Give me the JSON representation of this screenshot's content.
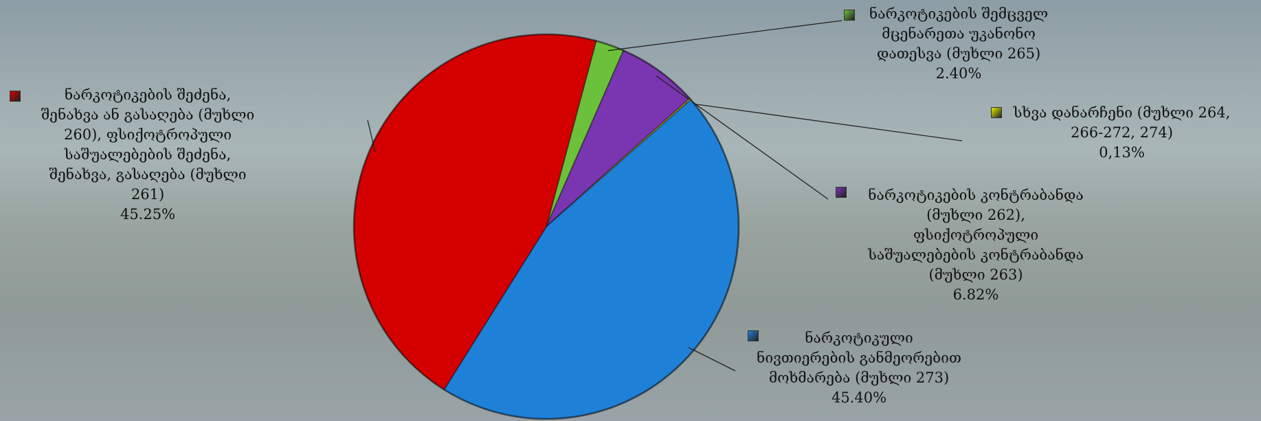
{
  "chart_data": {
    "type": "pie",
    "categories": [
      "ნარკოტიკების შემცველ\nმცენარეთა უკანონო\nდათესვა (მუხლი 265)",
      "ნარკოტიკების კონტრაბანდა\n(მუხლი 262),\nფსიქოტროპული\nსაშუალებების კონტრაბანდა\n(მუხლი 263)",
      "სხვა დანარჩენი (მუხლი 264,\n266-272, 274)",
      "ნარკოტიკული\nნივთიერების განმეორებით\nმოხმარება (მუხლი 273)",
      "ნარკოტიკების შეძენა,\nშენახვა ან გასაღება (მუხლი\n260), ფსიქოტროპული\nსაშუალებების შეძენა,\nშენახვა, გასაღება (მუხლი\n261)"
    ],
    "values": [
      2.4,
      6.82,
      0.13,
      45.4,
      45.25
    ],
    "value_labels": [
      "2.40%",
      "6.82%",
      "0,13%",
      "45.40%",
      "45.25%"
    ],
    "colors": [
      "#6cc13a",
      "#7a35b0",
      "#e8e800",
      "#1f80d8",
      "#d40000"
    ]
  }
}
